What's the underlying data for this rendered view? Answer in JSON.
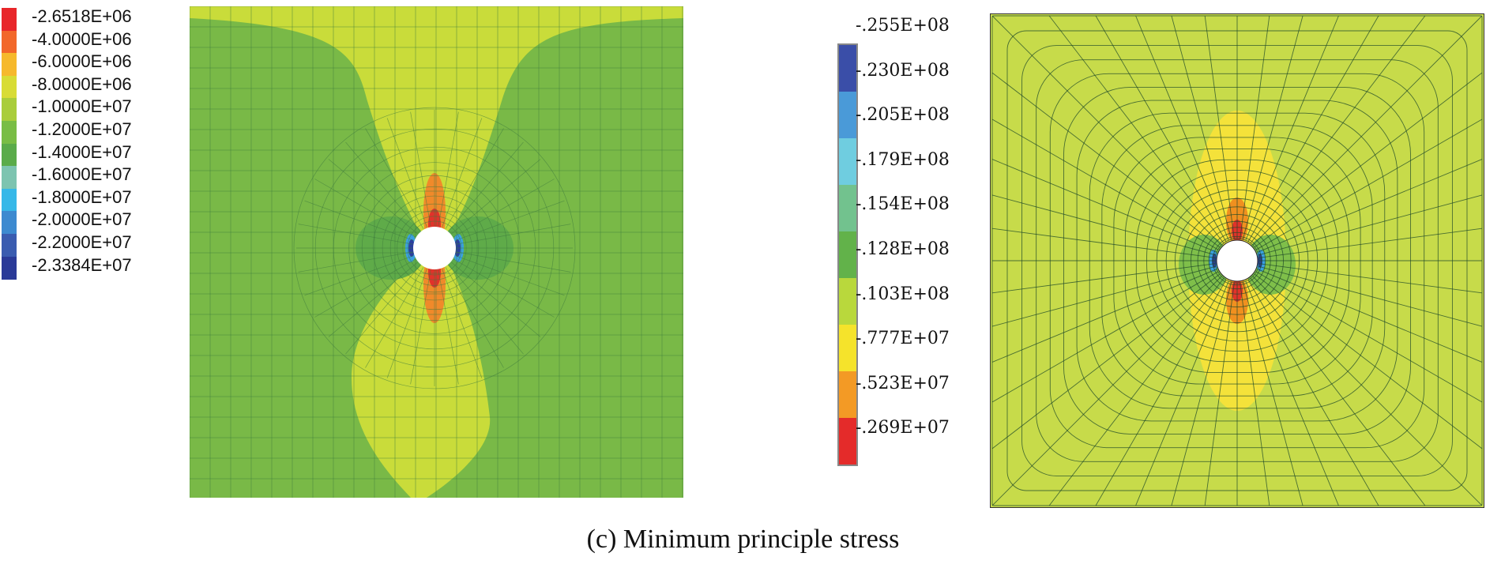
{
  "left_legend": {
    "entries": [
      {
        "label": "-2.6518E+06",
        "color": "#e8262a"
      },
      {
        "label": "-4.0000E+06",
        "color": "#f2682a"
      },
      {
        "label": "-6.0000E+06",
        "color": "#f6b92c"
      },
      {
        "label": "-8.0000E+06",
        "color": "#d8dc35"
      },
      {
        "label": "-1.0000E+07",
        "color": "#a9cd3b"
      },
      {
        "label": "-1.2000E+07",
        "color": "#79bd45"
      },
      {
        "label": "-1.4000E+07",
        "color": "#5aab4a"
      },
      {
        "label": "-1.6000E+07",
        "color": "#7dc4b0"
      },
      {
        "label": "-1.8000E+07",
        "color": "#36b8e8"
      },
      {
        "label": "-2.0000E+07",
        "color": "#3d8ad0"
      },
      {
        "label": "-2.2000E+07",
        "color": "#3a5cb0"
      },
      {
        "label": "-2.3384E+07",
        "color": "#2a3a98"
      }
    ]
  },
  "right_legend": {
    "labels": [
      ".255E+08",
      ".230E+08",
      ".205E+08",
      ".179E+08",
      ".154E+08",
      ".128E+08",
      ".103E+08",
      ".777E+07",
      ".523E+07",
      ".269E+07"
    ],
    "labels_prefix": "-",
    "bands": [
      "#3a4ea8",
      "#4a9ad8",
      "#6fcde0",
      "#72c28e",
      "#62b24a",
      "#b9d83c",
      "#f5e32b",
      "#f39a25",
      "#e42b2a"
    ]
  },
  "colors": {
    "bg_green": "#79b947",
    "yellow_zone": "#c9dc3a",
    "orange": "#f08a2a",
    "red": "#e2322a",
    "blue_dark": "#2b3f9e",
    "blue_light": "#3aa0e0",
    "right_bg": "#c7db4a",
    "right_yellow": "#f4e23a",
    "right_orange": "#f0901f",
    "mesh_left": "#3d7a3e",
    "mesh_right": "#1f4a2a"
  },
  "caption": "(c) Minimum principle stress"
}
